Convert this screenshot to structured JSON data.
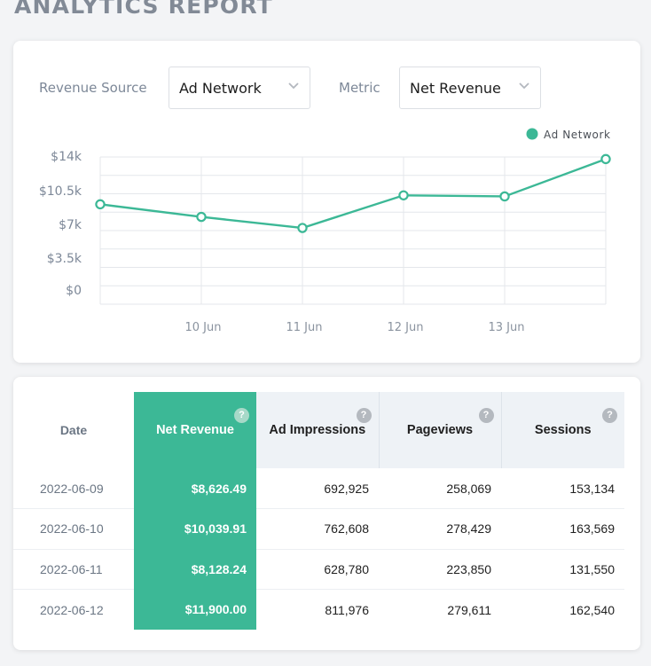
{
  "page": {
    "title": "ANALYTICS REPORT"
  },
  "filters": {
    "source_label": "Revenue Source",
    "source_value": "Ad Network",
    "metric_label": "Metric",
    "metric_value": "Net Revenue"
  },
  "chart_data": {
    "type": "line",
    "categories": [
      "",
      "10 Jun",
      "11 Jun",
      "12 Jun",
      "13 Jun",
      ""
    ],
    "series": [
      {
        "name": "Ad Network",
        "color": "#3cb896",
        "values": [
          9500,
          8300,
          7250,
          10350,
          10250,
          13800
        ]
      }
    ],
    "y_ticks": [
      {
        "value": 14000,
        "label": "$14k"
      },
      {
        "value": 10500,
        "label": "$10.5k"
      },
      {
        "value": 7000,
        "label": "$7k"
      },
      {
        "value": 3500,
        "label": "$3.5k"
      },
      {
        "value": 0,
        "label": "$0"
      }
    ],
    "ylim": [
      0,
      14000
    ],
    "grid": true,
    "legend": "top-right"
  },
  "table": {
    "columns": [
      {
        "label": "Date"
      },
      {
        "label": "Net Revenue",
        "help": "?"
      },
      {
        "label": "Ad Impressions",
        "help": "?"
      },
      {
        "label": "Pageviews",
        "help": "?"
      },
      {
        "label": "Sessions",
        "help": "?"
      }
    ],
    "rows": [
      [
        "2022-06-09",
        "$8,626.49",
        "692,925",
        "258,069",
        "153,134"
      ],
      [
        "2022-06-10",
        "$10,039.91",
        "762,608",
        "278,429",
        "163,569"
      ],
      [
        "2022-06-11",
        "$8,128.24",
        "628,780",
        "223,850",
        "131,550"
      ],
      [
        "2022-06-12",
        "$11,900.00",
        "811,976",
        "279,611",
        "162,540"
      ]
    ]
  },
  "colors": {
    "accent": "#3cb896",
    "muted_text": "#7d8898"
  }
}
